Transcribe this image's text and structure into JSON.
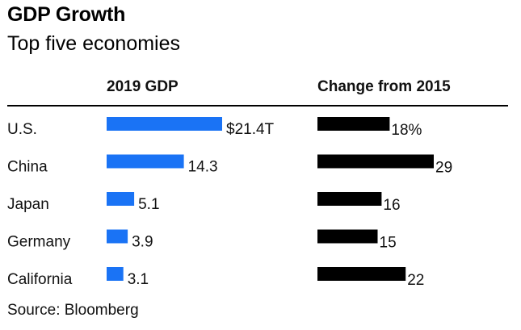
{
  "header": {
    "title": "GDP Growth",
    "subtitle": "Top five economies"
  },
  "footer": {
    "source": "Source: Bloomberg"
  },
  "colors": {
    "gdp_bar": "#1a73f5",
    "change_bar": "#000000",
    "rule": "#000000",
    "text": "#111111"
  },
  "chart_data": {
    "type": "bar",
    "title": "GDP Growth",
    "subtitle": "Top five economies",
    "categories": [
      "U.S.",
      "China",
      "Japan",
      "Germany",
      "California"
    ],
    "series": [
      {
        "name": "2019 GDP",
        "unit": "trillion USD",
        "values": [
          21.4,
          14.3,
          5.1,
          3.9,
          3.1
        ],
        "labels": [
          "$21.4T",
          "14.3",
          "5.1",
          "3.9",
          "3.1"
        ]
      },
      {
        "name": "Change from 2015",
        "unit": "percent",
        "values": [
          18,
          29,
          16,
          15,
          22
        ],
        "labels": [
          "18%",
          "29",
          "16",
          "15",
          "22"
        ]
      }
    ],
    "source": "Source: Bloomberg"
  }
}
